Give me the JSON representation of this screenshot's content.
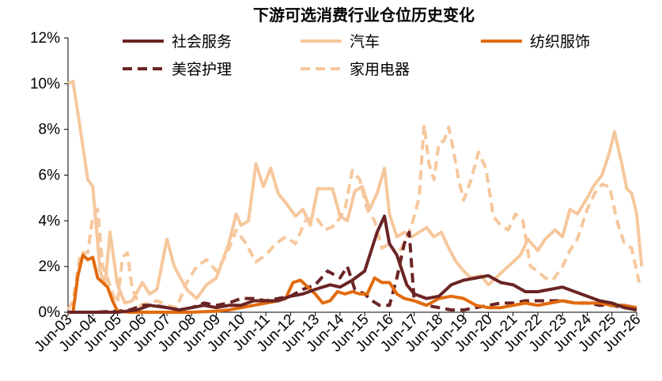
{
  "chart_data": {
    "type": "line",
    "title": "下游可选消费行业仓位历史变化",
    "xlabel": "",
    "ylabel": "",
    "x_tick_labels": [
      "Jun-03",
      "Jun-04",
      "Jun-05",
      "Jun-06",
      "Jun-07",
      "Jun-08",
      "Jun-09",
      "Jun-10",
      "Jun-11",
      "Jun-12",
      "Jun-13",
      "Jun-14",
      "Jun-15",
      "Jun-16",
      "Jun-17",
      "Jun-18",
      "Jun-19",
      "Jun-20",
      "Jun-21",
      "Jun-22",
      "Jun-23",
      "Jun-24",
      "Jun-25",
      "Jun-26"
    ],
    "y_tick_labels": [
      "0%",
      "2%",
      "4%",
      "6%",
      "8%",
      "10%",
      "12%"
    ],
    "ylim": [
      0,
      12
    ],
    "xlim": [
      0,
      23
    ],
    "legend_position": "top",
    "grid": false,
    "series": [
      {
        "name": "社会服务",
        "color": "#6b2424",
        "dash": "solid",
        "points": [
          [
            0,
            0
          ],
          [
            1,
            0
          ],
          [
            2,
            0
          ],
          [
            2.8,
            0.1
          ],
          [
            3.3,
            0.3
          ],
          [
            4,
            0.2
          ],
          [
            4.5,
            0.1
          ],
          [
            5,
            0.2
          ],
          [
            5.5,
            0.3
          ],
          [
            6,
            0.2
          ],
          [
            6.5,
            0.3
          ],
          [
            7,
            0.3
          ],
          [
            7.5,
            0.5
          ],
          [
            8,
            0.5
          ],
          [
            8.5,
            0.5
          ],
          [
            9,
            0.7
          ],
          [
            9.5,
            0.8
          ],
          [
            10,
            1.0
          ],
          [
            10.3,
            1.1
          ],
          [
            10.6,
            1.2
          ],
          [
            11,
            1.1
          ],
          [
            11.5,
            1.4
          ],
          [
            12,
            1.8
          ],
          [
            12.5,
            3.5
          ],
          [
            12.8,
            4.2
          ],
          [
            13,
            3.0
          ],
          [
            13.3,
            2.5
          ],
          [
            13.7,
            1.2
          ],
          [
            14,
            0.8
          ],
          [
            14.5,
            0.6
          ],
          [
            15,
            0.7
          ],
          [
            15.5,
            1.2
          ],
          [
            16,
            1.4
          ],
          [
            16.5,
            1.5
          ],
          [
            17,
            1.6
          ],
          [
            17.5,
            1.3
          ],
          [
            18,
            1.2
          ],
          [
            18.5,
            0.9
          ],
          [
            19,
            0.9
          ],
          [
            19.5,
            1.0
          ],
          [
            20,
            1.1
          ],
          [
            20.5,
            0.9
          ],
          [
            21,
            0.7
          ],
          [
            21.5,
            0.5
          ],
          [
            22,
            0.4
          ],
          [
            22.5,
            0.2
          ],
          [
            23,
            0.1
          ]
        ]
      },
      {
        "name": "汽车",
        "color": "#f6c79c",
        "dash": "solid",
        "points": [
          [
            0,
            10.0
          ],
          [
            0.2,
            10.1
          ],
          [
            0.5,
            8.0
          ],
          [
            0.8,
            5.8
          ],
          [
            1,
            5.5
          ],
          [
            1.3,
            1.8
          ],
          [
            1.5,
            1.2
          ],
          [
            1.7,
            3.5
          ],
          [
            2,
            1.2
          ],
          [
            2.3,
            0.4
          ],
          [
            2.6,
            0.5
          ],
          [
            3,
            1.3
          ],
          [
            3.3,
            0.8
          ],
          [
            3.6,
            1.0
          ],
          [
            4,
            3.2
          ],
          [
            4.3,
            2.0
          ],
          [
            4.8,
            1.0
          ],
          [
            5.2,
            0.6
          ],
          [
            5.6,
            1.2
          ],
          [
            6,
            1.5
          ],
          [
            6.5,
            3.0
          ],
          [
            6.8,
            4.3
          ],
          [
            7,
            3.8
          ],
          [
            7.3,
            4.0
          ],
          [
            7.6,
            6.5
          ],
          [
            7.9,
            5.5
          ],
          [
            8.2,
            6.3
          ],
          [
            8.5,
            5.2
          ],
          [
            8.8,
            4.8
          ],
          [
            9.2,
            4.2
          ],
          [
            9.5,
            4.5
          ],
          [
            9.8,
            3.8
          ],
          [
            10.1,
            5.4
          ],
          [
            10.4,
            5.4
          ],
          [
            10.7,
            5.4
          ],
          [
            11,
            4.2
          ],
          [
            11.3,
            4.0
          ],
          [
            11.6,
            5.3
          ],
          [
            11.9,
            5.5
          ],
          [
            12.2,
            4.5
          ],
          [
            12.5,
            5.2
          ],
          [
            12.8,
            6.3
          ],
          [
            13,
            4.3
          ],
          [
            13.3,
            3.3
          ],
          [
            13.6,
            3.5
          ],
          [
            13.9,
            3.3
          ],
          [
            14.2,
            3.5
          ],
          [
            14.5,
            3.7
          ],
          [
            14.8,
            3.3
          ],
          [
            15.1,
            3.5
          ],
          [
            15.4,
            2.8
          ],
          [
            15.7,
            2.2
          ],
          [
            16,
            1.8
          ],
          [
            16.3,
            1.5
          ],
          [
            16.7,
            1.6
          ],
          [
            17,
            1.2
          ],
          [
            17.3,
            1.5
          ],
          [
            17.6,
            1.8
          ],
          [
            18,
            2.2
          ],
          [
            18.3,
            2.5
          ],
          [
            18.6,
            3.2
          ],
          [
            19,
            2.7
          ],
          [
            19.3,
            3.2
          ],
          [
            19.7,
            3.6
          ],
          [
            20,
            3.3
          ],
          [
            20.3,
            4.5
          ],
          [
            20.6,
            4.3
          ],
          [
            21,
            5.0
          ],
          [
            21.3,
            5.6
          ],
          [
            21.6,
            6.0
          ],
          [
            21.9,
            7.0
          ],
          [
            22.1,
            7.9
          ],
          [
            22.4,
            6.5
          ],
          [
            22.6,
            5.4
          ],
          [
            22.8,
            5.2
          ],
          [
            23,
            4.3
          ],
          [
            23.2,
            2.0
          ]
        ]
      },
      {
        "name": "纺织服饰",
        "color": "#e26b0e",
        "dash": "solid",
        "points": [
          [
            0,
            0
          ],
          [
            0.2,
            0
          ],
          [
            0.4,
            1.6
          ],
          [
            0.6,
            2.5
          ],
          [
            0.8,
            2.3
          ],
          [
            1,
            2.4
          ],
          [
            1.2,
            1.5
          ],
          [
            1.4,
            1.3
          ],
          [
            1.6,
            1.1
          ],
          [
            1.8,
            0.5
          ],
          [
            2,
            0.05
          ],
          [
            2.5,
            0
          ],
          [
            3,
            0
          ],
          [
            3.5,
            0
          ],
          [
            4,
            0
          ],
          [
            5,
            0
          ],
          [
            6,
            0.05
          ],
          [
            6.5,
            0.1
          ],
          [
            7,
            0.2
          ],
          [
            7.5,
            0.3
          ],
          [
            8,
            0.4
          ],
          [
            8.5,
            0.5
          ],
          [
            8.8,
            0.6
          ],
          [
            9.1,
            1.3
          ],
          [
            9.4,
            1.4
          ],
          [
            9.7,
            1.1
          ],
          [
            10,
            0.8
          ],
          [
            10.3,
            0.4
          ],
          [
            10.6,
            0.5
          ],
          [
            10.9,
            0.9
          ],
          [
            11.2,
            0.8
          ],
          [
            11.5,
            0.9
          ],
          [
            11.8,
            0.8
          ],
          [
            12.1,
            0.8
          ],
          [
            12.4,
            1.5
          ],
          [
            12.7,
            1.3
          ],
          [
            13,
            1.3
          ],
          [
            13.3,
            0.8
          ],
          [
            13.6,
            0.6
          ],
          [
            14,
            0.5
          ],
          [
            14.5,
            0.3
          ],
          [
            15,
            0.6
          ],
          [
            15.5,
            0.7
          ],
          [
            16,
            0.6
          ],
          [
            16.5,
            0.3
          ],
          [
            17,
            0.2
          ],
          [
            17.5,
            0.2
          ],
          [
            18,
            0.3
          ],
          [
            18.5,
            0.4
          ],
          [
            19,
            0.3
          ],
          [
            19.5,
            0.4
          ],
          [
            20,
            0.5
          ],
          [
            20.5,
            0.4
          ],
          [
            21,
            0.4
          ],
          [
            21.5,
            0.4
          ],
          [
            22,
            0.3
          ],
          [
            22.5,
            0.3
          ],
          [
            23,
            0.2
          ]
        ]
      },
      {
        "name": "美容护理",
        "color": "#6b2424",
        "dash": "dashed",
        "points": [
          [
            0,
            0
          ],
          [
            1,
            0
          ],
          [
            2,
            0.05
          ],
          [
            2.5,
            0.1
          ],
          [
            3,
            0.3
          ],
          [
            3.5,
            0.3
          ],
          [
            4,
            0.2
          ],
          [
            4.5,
            0.1
          ],
          [
            5,
            0.2
          ],
          [
            5.5,
            0.4
          ],
          [
            6,
            0.3
          ],
          [
            6.5,
            0.4
          ],
          [
            7,
            0.6
          ],
          [
            7.5,
            0.6
          ],
          [
            8,
            0.5
          ],
          [
            8.5,
            0.6
          ],
          [
            9,
            0.7
          ],
          [
            9.5,
            1.0
          ],
          [
            10,
            1.2
          ],
          [
            10.5,
            1.8
          ],
          [
            11,
            1.5
          ],
          [
            11.3,
            2.0
          ],
          [
            11.6,
            1.0
          ],
          [
            12,
            0.8
          ],
          [
            12.3,
            0.5
          ],
          [
            12.6,
            0.3
          ],
          [
            13,
            0.3
          ],
          [
            13.3,
            1.5
          ],
          [
            13.6,
            3.0
          ],
          [
            13.8,
            3.5
          ],
          [
            14,
            0.5
          ],
          [
            14.5,
            0.3
          ],
          [
            15,
            0.2
          ],
          [
            15.5,
            0.1
          ],
          [
            16,
            0.1
          ],
          [
            16.5,
            0.2
          ],
          [
            17,
            0.3
          ],
          [
            17.5,
            0.4
          ],
          [
            18,
            0.4
          ],
          [
            18.5,
            0.5
          ],
          [
            19,
            0.5
          ],
          [
            19.5,
            0.5
          ],
          [
            20,
            0.5
          ],
          [
            20.5,
            0.4
          ],
          [
            21,
            0.4
          ],
          [
            21.5,
            0.3
          ],
          [
            22,
            0.3
          ],
          [
            22.5,
            0.2
          ],
          [
            23,
            0.2
          ]
        ]
      },
      {
        "name": "家用电器",
        "color": "#f6c79c",
        "dash": "dashed",
        "points": [
          [
            0,
            0.1
          ],
          [
            0.2,
            0.5
          ],
          [
            0.5,
            2.6
          ],
          [
            0.8,
            2.6
          ],
          [
            1,
            4.2
          ],
          [
            1.2,
            4.5
          ],
          [
            1.4,
            2.0
          ],
          [
            1.6,
            1.5
          ],
          [
            1.8,
            0.8
          ],
          [
            2,
            0.4
          ],
          [
            2.2,
            2.4
          ],
          [
            2.4,
            2.6
          ],
          [
            2.6,
            1.0
          ],
          [
            2.9,
            0.3
          ],
          [
            3.3,
            0.4
          ],
          [
            3.6,
            0.5
          ],
          [
            4,
            0.3
          ],
          [
            4.4,
            0.2
          ],
          [
            4.8,
            1.3
          ],
          [
            5.2,
            2.0
          ],
          [
            5.6,
            2.3
          ],
          [
            6,
            1.8
          ],
          [
            6.4,
            2.5
          ],
          [
            6.8,
            3.6
          ],
          [
            7.2,
            3.0
          ],
          [
            7.6,
            2.2
          ],
          [
            8,
            2.5
          ],
          [
            8.4,
            3.0
          ],
          [
            8.8,
            3.3
          ],
          [
            9.2,
            3.0
          ],
          [
            9.6,
            4.0
          ],
          [
            10,
            4.2
          ],
          [
            10.4,
            3.6
          ],
          [
            10.8,
            3.8
          ],
          [
            11.2,
            4.5
          ],
          [
            11.5,
            6.2
          ],
          [
            11.8,
            5.8
          ],
          [
            12.1,
            4.5
          ],
          [
            12.4,
            4.0
          ],
          [
            12.7,
            2.8
          ],
          [
            13,
            3.0
          ],
          [
            13.3,
            2.5
          ],
          [
            13.6,
            3.0
          ],
          [
            13.9,
            3.8
          ],
          [
            14.2,
            5.0
          ],
          [
            14.4,
            8.2
          ],
          [
            14.6,
            6.5
          ],
          [
            14.8,
            5.8
          ],
          [
            15,
            7.4
          ],
          [
            15.2,
            7.5
          ],
          [
            15.4,
            8.1
          ],
          [
            15.6,
            7.0
          ],
          [
            15.8,
            5.8
          ],
          [
            16,
            4.9
          ],
          [
            16.3,
            5.8
          ],
          [
            16.6,
            7.0
          ],
          [
            16.9,
            6.3
          ],
          [
            17.2,
            4.2
          ],
          [
            17.5,
            3.8
          ],
          [
            17.8,
            3.6
          ],
          [
            18.1,
            4.3
          ],
          [
            18.4,
            4.0
          ],
          [
            18.7,
            2.0
          ],
          [
            19,
            1.8
          ],
          [
            19.3,
            1.5
          ],
          [
            19.6,
            1.4
          ],
          [
            20,
            2.0
          ],
          [
            20.3,
            2.7
          ],
          [
            20.6,
            3.2
          ],
          [
            21,
            4.5
          ],
          [
            21.3,
            5.2
          ],
          [
            21.6,
            5.6
          ],
          [
            21.9,
            5.5
          ],
          [
            22.2,
            4.0
          ],
          [
            22.5,
            3.0
          ],
          [
            22.8,
            2.8
          ],
          [
            23.1,
            1.3
          ]
        ]
      }
    ]
  }
}
